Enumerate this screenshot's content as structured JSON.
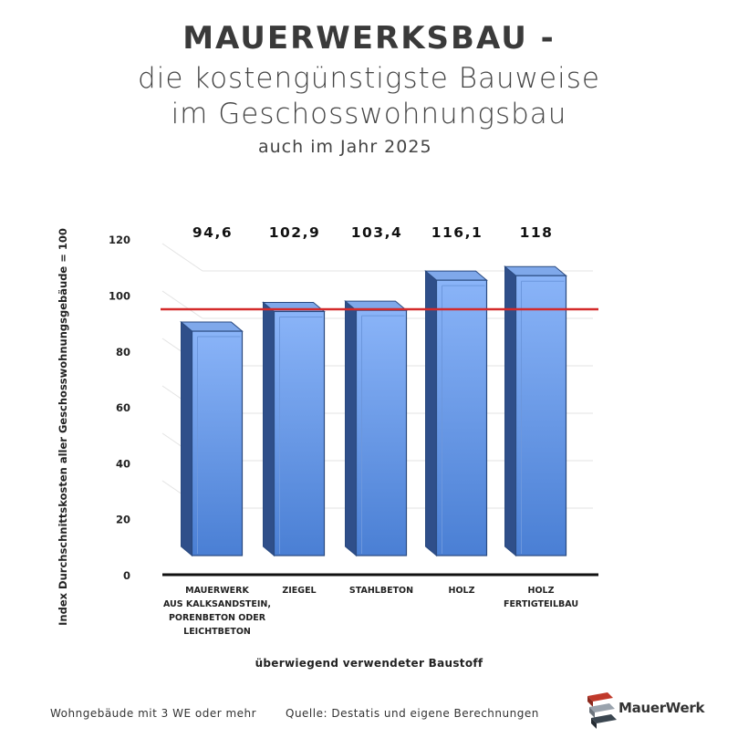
{
  "header": {
    "title": "MAUERWERKSBAU -",
    "subtitle_line1": "die kostengünstigste Bauweise",
    "subtitle_line2": "im Geschosswohnungsbau",
    "subtitle_line3": "auch im Jahr 2025"
  },
  "footer": {
    "note": "Wohngebäude mit 3 WE oder mehr",
    "source": "Quelle: Destatis und eigene Berechnungen"
  },
  "logo": {
    "name": "MauerWerk",
    "icon": "brick-stack-logo"
  },
  "colors": {
    "bar": "#4a7fd4",
    "reference_line": "#d42a2a",
    "text": "#333333"
  },
  "chart_data": {
    "type": "bar",
    "categories": [
      [
        "MAUERWERK",
        "AUS KALKSANDSTEIN,",
        "PORENBETON ODER",
        "LEICHTBETON"
      ],
      [
        "ZIEGEL"
      ],
      [
        "STAHLBETON"
      ],
      [
        "HOLZ"
      ],
      [
        "HOLZ",
        "FERTIGTEILBAU"
      ]
    ],
    "values": [
      94.6,
      102.9,
      103.4,
      116.1,
      118
    ],
    "data_labels": [
      "94,6",
      "102,9",
      "103,4",
      "116,1",
      "118"
    ],
    "reference_line": 100,
    "ylabel": "Index Durchschnittskosten aller Geschosswohnungsgebäude = 100",
    "xlabel": "überwiegend verwendeter Baustoff",
    "ylim": [
      0,
      120
    ],
    "yticks": [
      "0",
      "20",
      "40",
      "60",
      "80",
      "100",
      "120"
    ],
    "grid": true,
    "style": "3d"
  }
}
